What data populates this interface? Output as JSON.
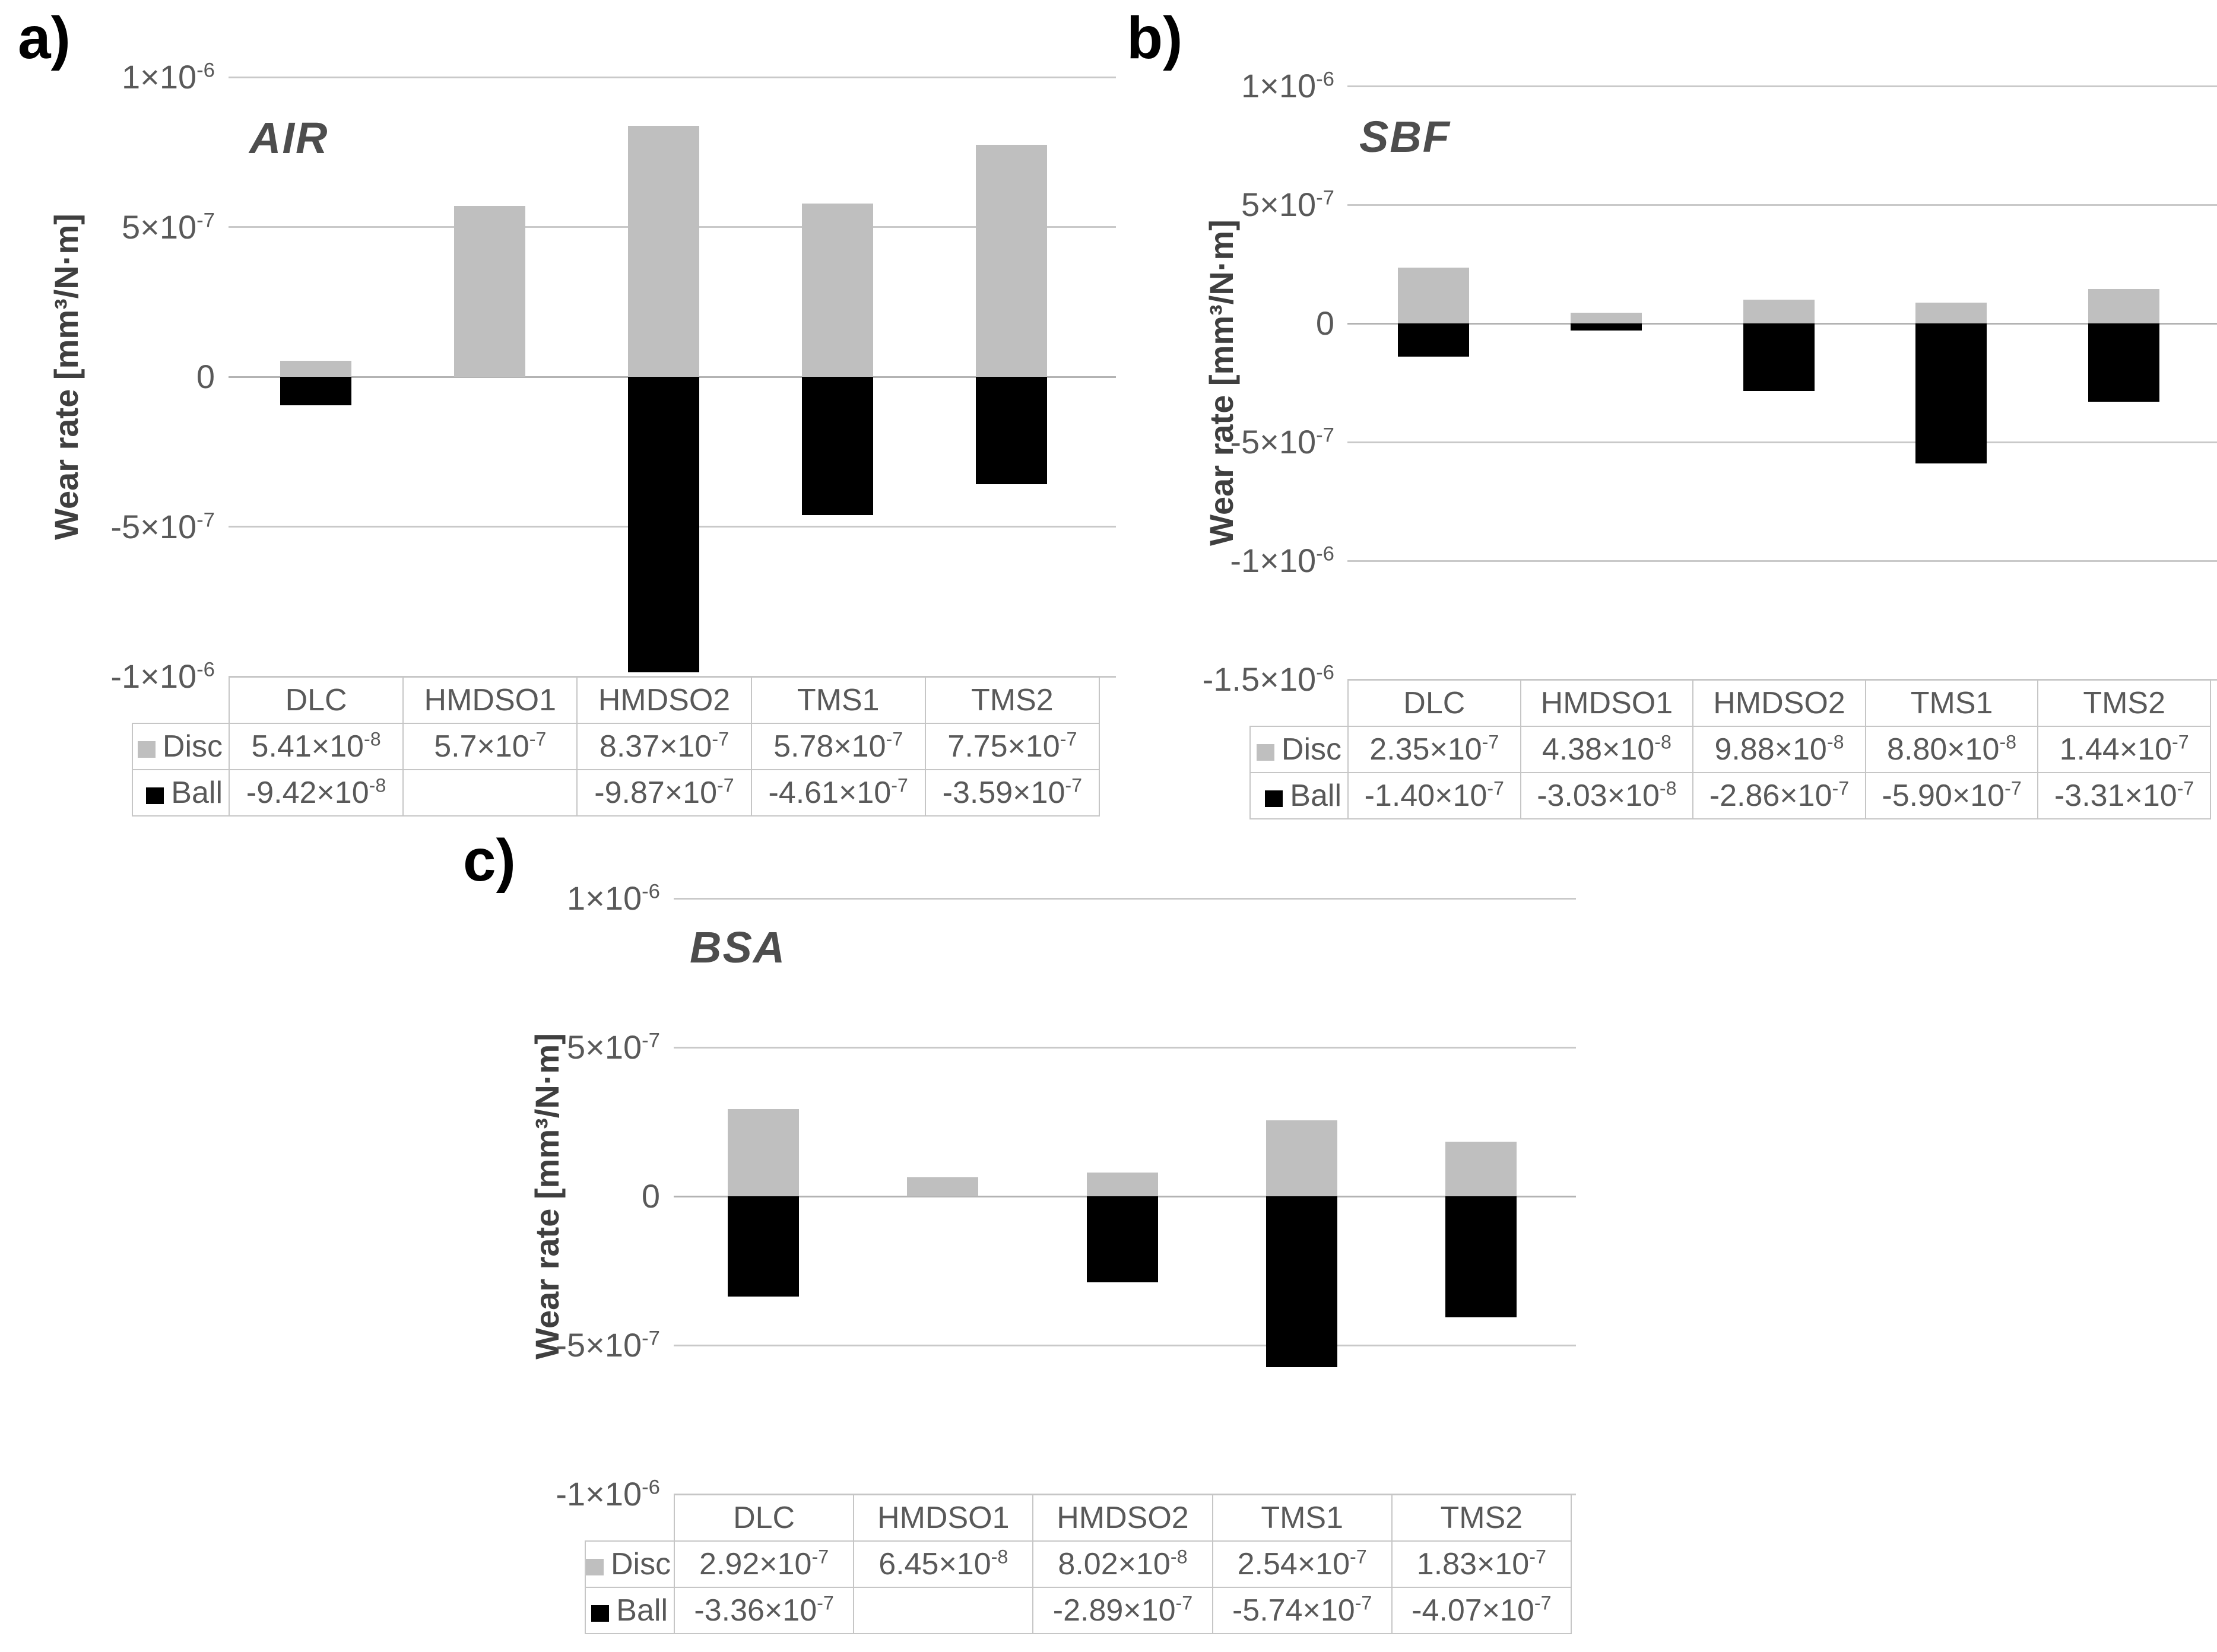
{
  "figure": {
    "background": "#ffffff",
    "colors": {
      "disc_series": "#bfbfbf",
      "ball_series": "#000000",
      "gridline": "#c9c9c9",
      "zero_axis": "#b3b3b3",
      "tick_text": "#595959",
      "chart_title_text": "#4d4d4d",
      "panel_label_text": "#000000",
      "table_text": "#595959",
      "table_border": "#c6c6c6"
    }
  },
  "chart_data": [
    {
      "panel_label": "a)",
      "type": "bar",
      "title": "AIR",
      "ylabel": "Wear rate [mm³/N·m]",
      "categories": [
        "DLC",
        "HMDSO1",
        "HMDSO2",
        "TMS1",
        "TMS2"
      ],
      "series": [
        {
          "name": "Disc",
          "color": "#bfbfbf",
          "values": [
            5.41e-08,
            5.7e-07,
            8.37e-07,
            5.78e-07,
            7.75e-07
          ],
          "labels": [
            "5.41×10^-8",
            "5.7×10^-7",
            "8.37×10^-7",
            "5.78×10^-7",
            "7.75×10^-7"
          ]
        },
        {
          "name": "Ball",
          "color": "#000000",
          "values": [
            -9.42e-08,
            null,
            -9.87e-07,
            -4.61e-07,
            -3.59e-07
          ],
          "labels": [
            "-9.42×10^-8",
            "",
            "-9.87×10^-7",
            "-4.61×10^-7",
            "-3.59×10^-7"
          ]
        }
      ],
      "ylim": [
        -1e-06,
        1e-06
      ],
      "yticks": [
        {
          "value": 1e-06,
          "label": "1×10^-6"
        },
        {
          "value": 5e-07,
          "label": "5×10^-7"
        },
        {
          "value": 0,
          "label": "0"
        },
        {
          "value": -5e-07,
          "label": "-5×10^-7"
        },
        {
          "value": -1e-06,
          "label": "-1×10^-6"
        }
      ],
      "grid": true,
      "legend_position": "table-left"
    },
    {
      "panel_label": "b)",
      "type": "bar",
      "title": "SBF",
      "ylabel": "Wear rate [mm³/N·m]",
      "categories": [
        "DLC",
        "HMDSO1",
        "HMDSO2",
        "TMS1",
        "TMS2"
      ],
      "series": [
        {
          "name": "Disc",
          "color": "#bfbfbf",
          "values": [
            2.35e-07,
            4.38e-08,
            9.88e-08,
            8.8e-08,
            1.44e-07
          ],
          "labels": [
            "2.35×10^-7",
            "4.38×10^-8",
            "9.88×10^-8",
            "8.80×10^-8",
            "1.44×10^-7"
          ]
        },
        {
          "name": "Ball",
          "color": "#000000",
          "values": [
            -1.4e-07,
            -3.03e-08,
            -2.86e-07,
            -5.9e-07,
            -3.31e-07
          ],
          "labels": [
            "-1.40×10^-7",
            "-3.03×10^-8",
            "-2.86×10^-7",
            "-5.90×10^-7",
            "-3.31×10^-7"
          ]
        }
      ],
      "ylim": [
        -1.5e-06,
        1e-06
      ],
      "yticks": [
        {
          "value": 1e-06,
          "label": "1×10^-6"
        },
        {
          "value": 5e-07,
          "label": "5×10^-7"
        },
        {
          "value": 0,
          "label": "0"
        },
        {
          "value": -5e-07,
          "label": "-5×10^-7"
        },
        {
          "value": -1e-06,
          "label": "-1×10^-6"
        },
        {
          "value": -1.5e-06,
          "label": "-1.5×10^-6"
        }
      ],
      "grid": true,
      "legend_position": "table-left"
    },
    {
      "panel_label": "c)",
      "type": "bar",
      "title": "BSA",
      "ylabel": "Wear rate [mm³/N·m]",
      "categories": [
        "DLC",
        "HMDSO1",
        "HMDSO2",
        "TMS1",
        "TMS2"
      ],
      "series": [
        {
          "name": "Disc",
          "color": "#bfbfbf",
          "values": [
            2.92e-07,
            6.45e-08,
            8.02e-08,
            2.54e-07,
            1.83e-07
          ],
          "labels": [
            "2.92×10^-7",
            "6.45×10^-8",
            "8.02×10^-8",
            "2.54×10^-7",
            "1.83×10^-7"
          ]
        },
        {
          "name": "Ball",
          "color": "#000000",
          "values": [
            -3.36e-07,
            null,
            -2.89e-07,
            -5.74e-07,
            -4.07e-07
          ],
          "labels": [
            "-3.36×10^-7",
            "",
            "-2.89×10^-7",
            "-5.74×10^-7",
            "-4.07×10^-7"
          ]
        }
      ],
      "ylim": [
        -1e-06,
        1e-06
      ],
      "yticks": [
        {
          "value": 1e-06,
          "label": "1×10^-6"
        },
        {
          "value": 5e-07,
          "label": "5×10^-7"
        },
        {
          "value": 0,
          "label": "0"
        },
        {
          "value": -5e-07,
          "label": "-5×10^-7"
        },
        {
          "value": -1e-06,
          "label": "-1×10^-6"
        }
      ],
      "grid": true,
      "legend_position": "table-left"
    }
  ]
}
